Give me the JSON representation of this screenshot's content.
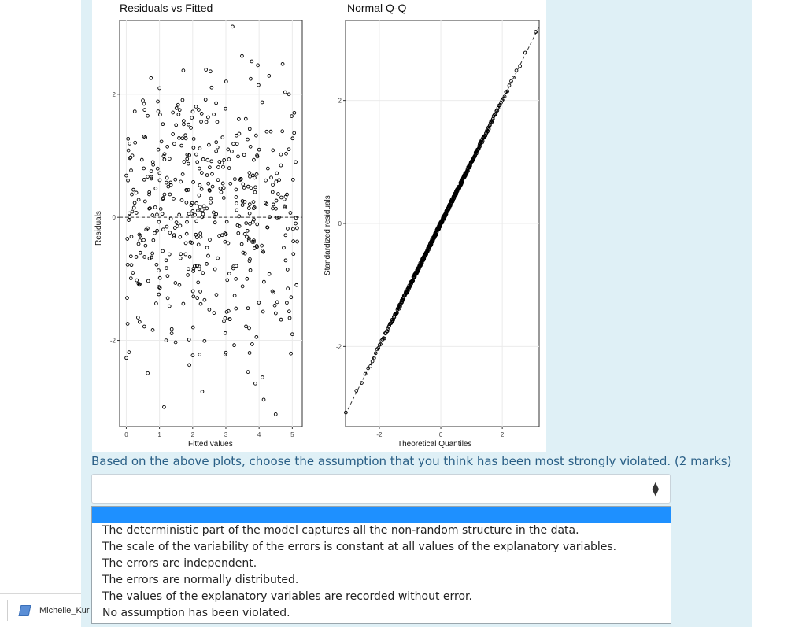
{
  "plots": {
    "left": {
      "title": "Residuals vs Fitted",
      "xlabel": "Fitted values",
      "ylabel": "Residuals",
      "xticks": [
        "0",
        "1",
        "2",
        "3",
        "4",
        "5"
      ],
      "yticks": [
        "2",
        "0",
        "-2"
      ]
    },
    "right": {
      "title": "Normal Q-Q",
      "xlabel": "Theoretical Quantiles",
      "ylabel": "Standardized residuals",
      "xticks": [
        "-2",
        "0",
        "2"
      ],
      "yticks": [
        "2",
        "0",
        "-2"
      ]
    }
  },
  "chart_data": [
    {
      "type": "scatter",
      "title": "Residuals vs Fitted",
      "xlabel": "Fitted values",
      "ylabel": "Residuals",
      "xlim": [
        -0.2,
        5.3
      ],
      "ylim": [
        -3.4,
        3.2
      ],
      "xticks": [
        0,
        1,
        2,
        3,
        4,
        5
      ],
      "yticks": [
        -2,
        0,
        2
      ],
      "reference_line": 0,
      "n_points": 500,
      "points": [
        [
          0.1,
          1.2
        ],
        [
          0.2,
          -0.9
        ],
        [
          0.3,
          0.4
        ],
        [
          0.4,
          -1.7
        ],
        [
          0.5,
          1.9
        ],
        [
          0.6,
          -0.2
        ],
        [
          0.8,
          0.9
        ],
        [
          0.9,
          -1.4
        ],
        [
          1.0,
          2.1
        ],
        [
          1.1,
          0.3
        ],
        [
          1.2,
          -2.0
        ],
        [
          1.3,
          -0.6
        ],
        [
          1.5,
          1.5
        ],
        [
          1.6,
          -1.1
        ],
        [
          1.7,
          0.7
        ],
        [
          1.9,
          -2.4
        ],
        [
          2.0,
          0.1
        ],
        [
          2.1,
          1.8
        ],
        [
          2.2,
          -0.8
        ],
        [
          2.4,
          2.4
        ],
        [
          2.5,
          -1.5
        ],
        [
          2.6,
          0.5
        ],
        [
          2.8,
          -0.3
        ],
        [
          2.9,
          1.3
        ],
        [
          3.0,
          -2.2
        ],
        [
          3.1,
          0.8
        ],
        [
          3.2,
          3.1
        ],
        [
          3.3,
          -1.0
        ],
        [
          3.5,
          0.2
        ],
        [
          3.6,
          1.6
        ],
        [
          3.7,
          -1.8
        ],
        [
          3.8,
          -0.4
        ],
        [
          4.0,
          1.1
        ],
        [
          4.1,
          -2.6
        ],
        [
          4.2,
          0.6
        ],
        [
          4.3,
          2.3
        ],
        [
          4.4,
          -1.2
        ],
        [
          4.5,
          -3.2
        ],
        [
          4.6,
          0.0
        ],
        [
          4.7,
          1.4
        ],
        [
          4.8,
          -0.7
        ],
        [
          4.9,
          2.0
        ],
        [
          5.0,
          -1.9
        ],
        [
          5.1,
          0.9
        ],
        [
          5.1,
          -0.1
        ]
      ]
    },
    {
      "type": "scatter",
      "title": "Normal Q-Q",
      "xlabel": "Theoretical Quantiles",
      "ylabel": "Standardized residuals",
      "xlim": [
        -3.1,
        3.2
      ],
      "ylim": [
        -3.3,
        3.3
      ],
      "xticks": [
        -2,
        0,
        2
      ],
      "yticks": [
        -2,
        0,
        2
      ],
      "reference_line": {
        "slope": 1,
        "intercept": 0
      },
      "n_points": 500,
      "points": [
        [
          -3.0,
          -3.1
        ],
        [
          -2.8,
          -2.8
        ],
        [
          -2.6,
          -2.5
        ],
        [
          -2.4,
          -2.35
        ],
        [
          -2.2,
          -2.2
        ],
        [
          -2.0,
          -1.95
        ],
        [
          -1.8,
          -1.8
        ],
        [
          -1.6,
          -1.55
        ],
        [
          -1.4,
          -1.4
        ],
        [
          -1.2,
          -1.2
        ],
        [
          -1.0,
          -1.0
        ],
        [
          -0.8,
          -0.8
        ],
        [
          -0.6,
          -0.6
        ],
        [
          -0.4,
          -0.4
        ],
        [
          -0.2,
          -0.2
        ],
        [
          0.0,
          0.0
        ],
        [
          0.2,
          0.2
        ],
        [
          0.4,
          0.4
        ],
        [
          0.6,
          0.6
        ],
        [
          0.8,
          0.8
        ],
        [
          1.0,
          1.0
        ],
        [
          1.2,
          1.2
        ],
        [
          1.4,
          1.4
        ],
        [
          1.6,
          1.6
        ],
        [
          1.8,
          1.8
        ],
        [
          2.0,
          2.0
        ],
        [
          2.2,
          2.2
        ],
        [
          2.4,
          2.35
        ],
        [
          2.6,
          2.5
        ],
        [
          2.8,
          2.7
        ],
        [
          3.0,
          2.95
        ]
      ]
    }
  ],
  "question": {
    "text": "Based on the above plots, choose the assumption that you think has been most strongly violated. (2 marks)",
    "selected_value": "",
    "arrows": "▲▼"
  },
  "dropdown": {
    "options": [
      "",
      "The deterministic part of the model captures all the non-random structure in the data.",
      "The scale of the variability of the errors is constant at all values of the explanatory variables.",
      "The errors are independent.",
      "The errors are normally distributed.",
      "The values of the explanatory variables are recorded without error.",
      "No assumption has been violated."
    ],
    "highlight_color": "#1e90ff"
  },
  "taskbar": {
    "label": "Michelle_Kur"
  },
  "colors": {
    "panel_background": "#dff0f6",
    "question_text": "#2a5f86"
  }
}
